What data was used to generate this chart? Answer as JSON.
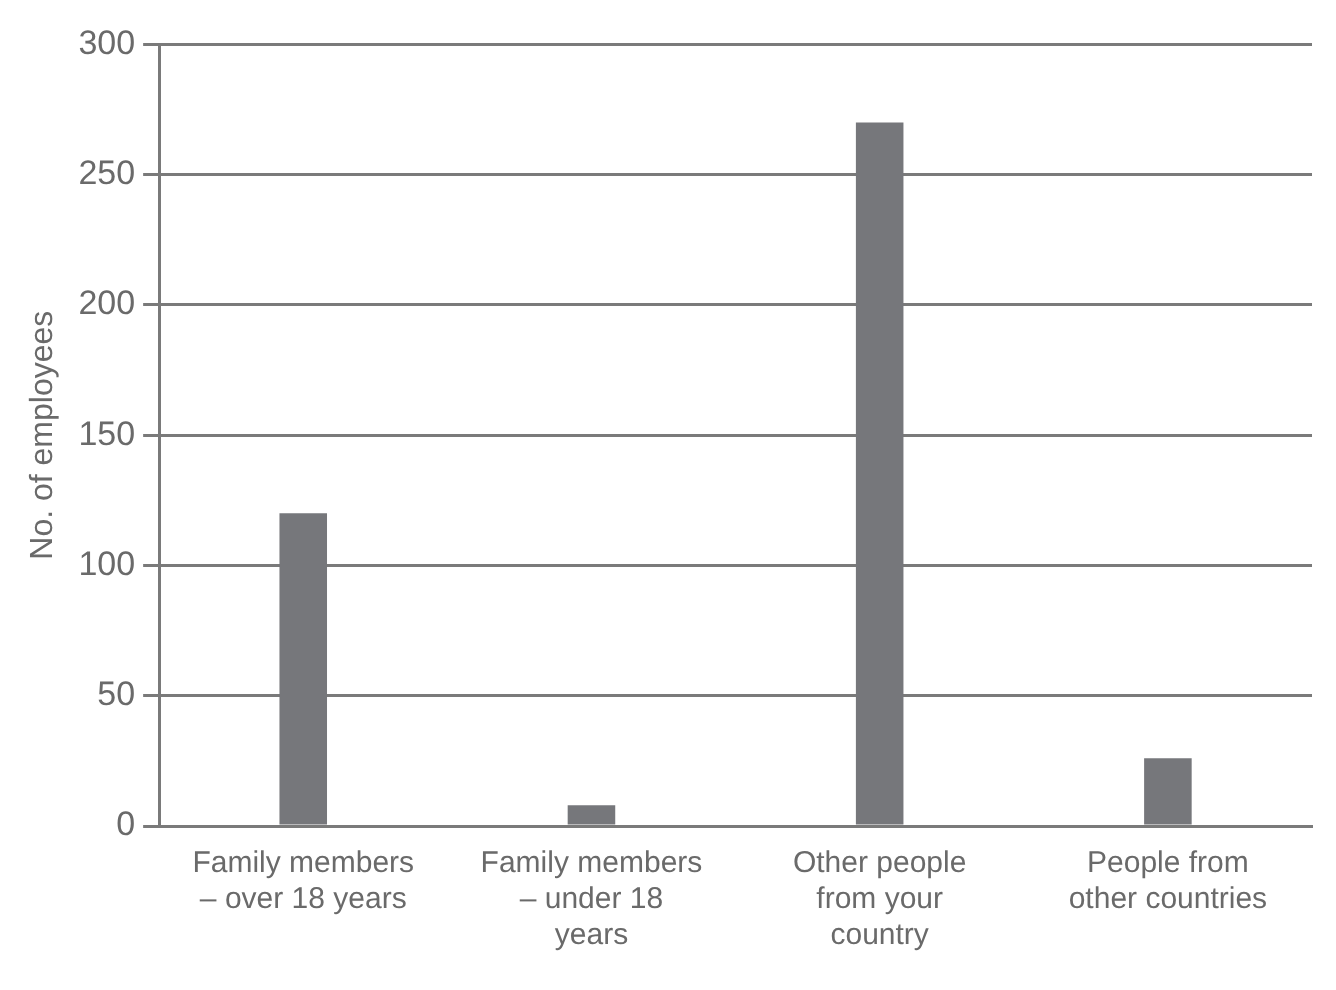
{
  "chart_data": {
    "type": "bar",
    "ylabel": "No. of employees",
    "categories": [
      "Family members – over 18 years",
      "Family members – under 18 years",
      "Other people from your country",
      "People from other countries"
    ],
    "values": [
      120,
      8,
      270,
      26
    ],
    "color": "#76777b",
    "ylim": [
      0,
      300
    ],
    "yticks": [
      0,
      50,
      100,
      150,
      200,
      250,
      300
    ],
    "grid": "y",
    "legend": false
  }
}
